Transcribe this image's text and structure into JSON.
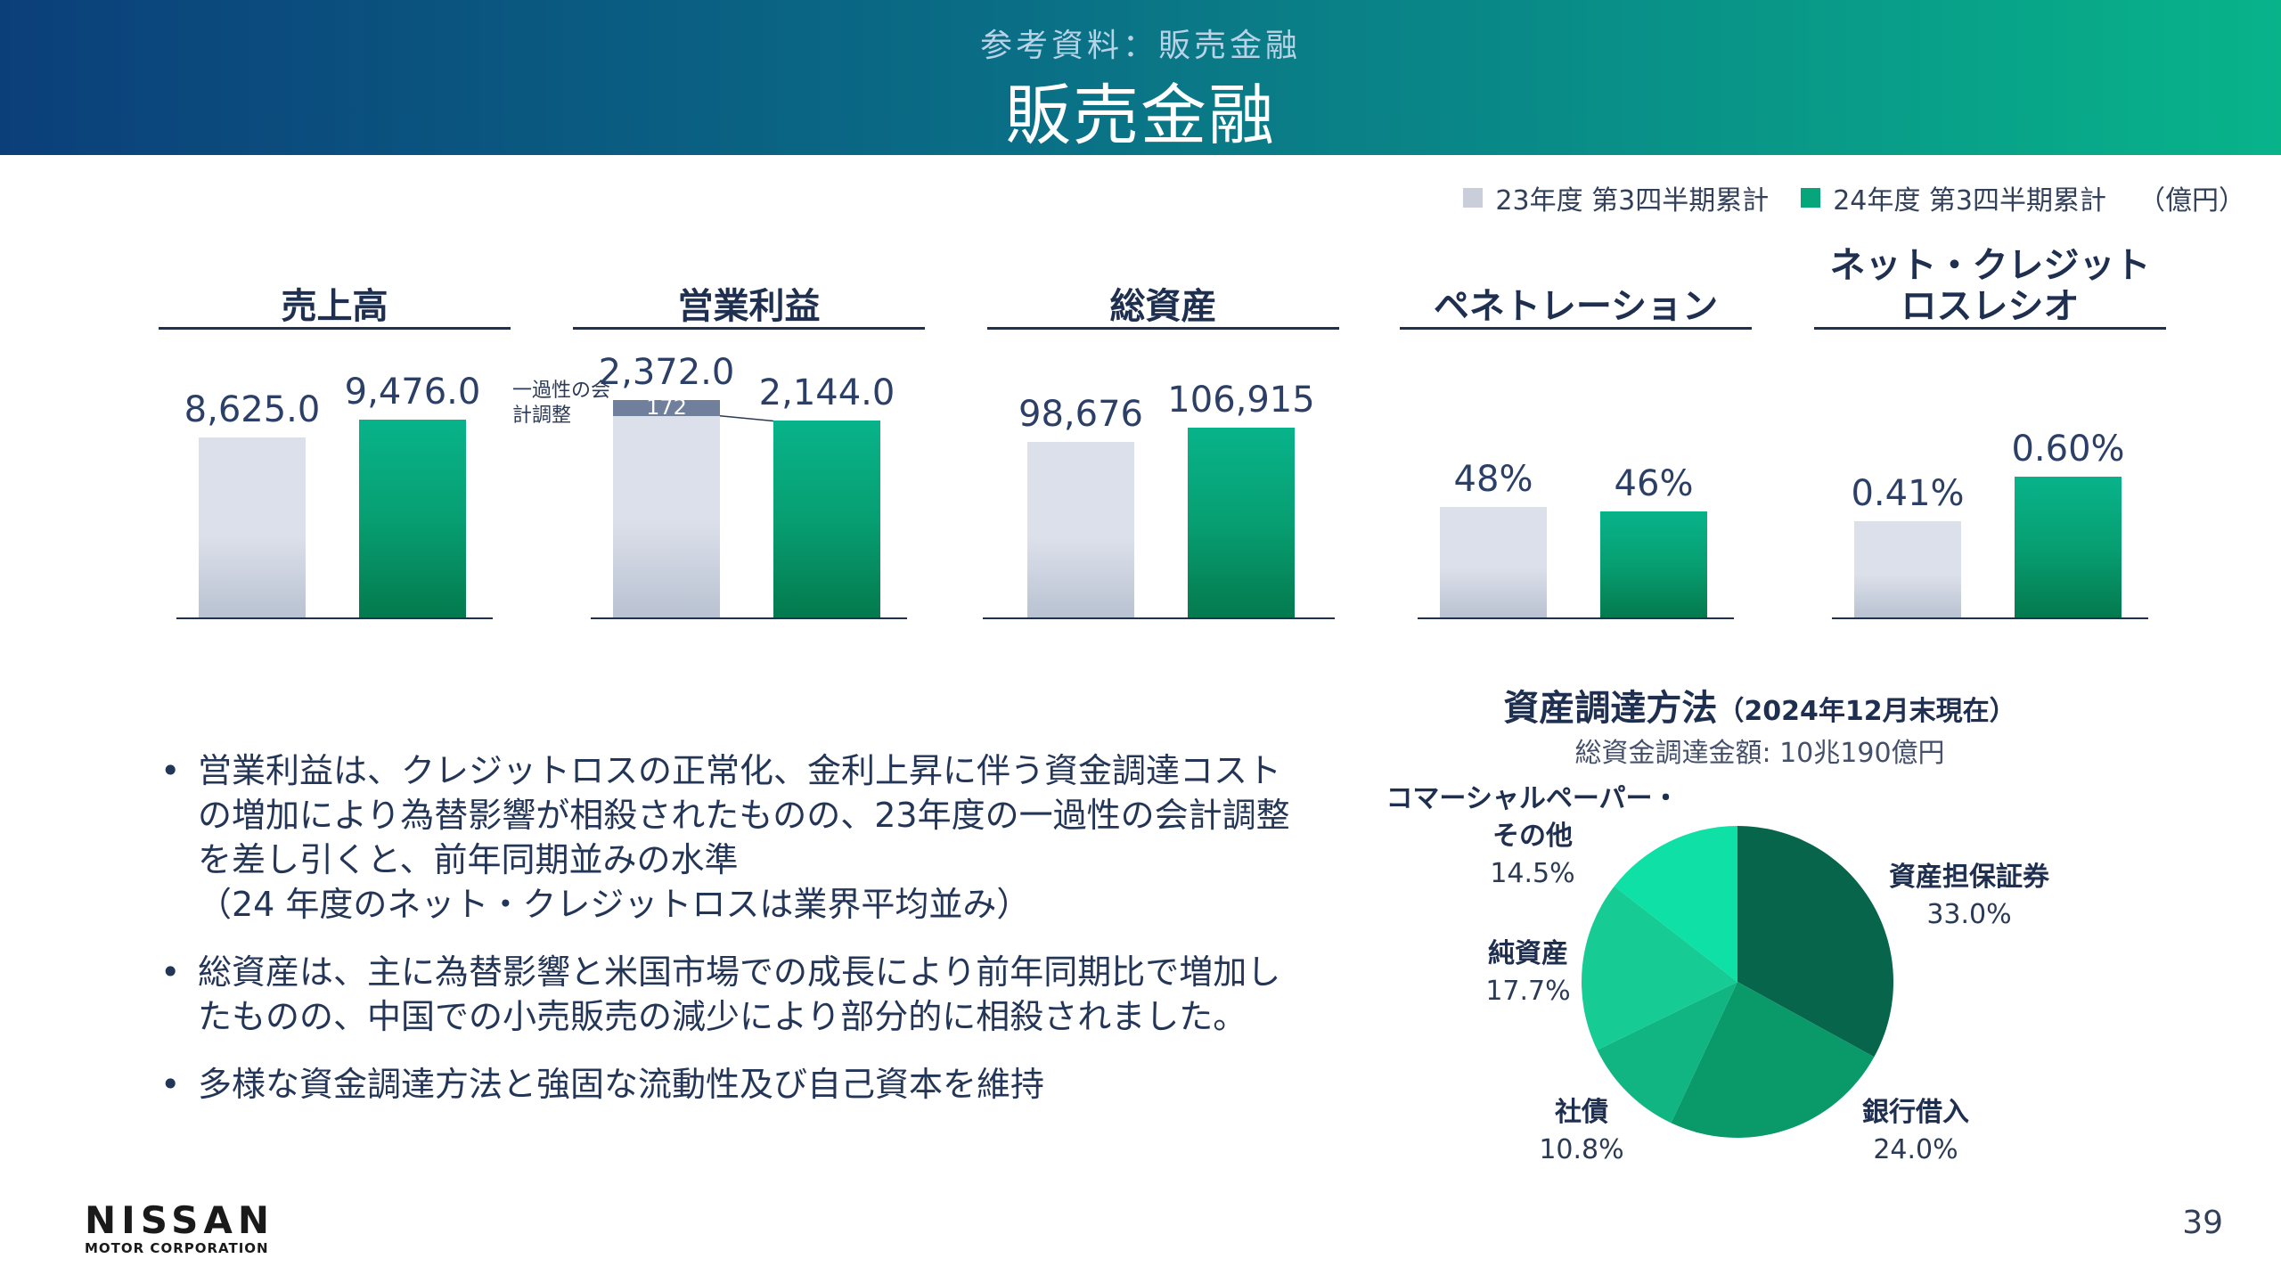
{
  "header": {
    "subtitle": "参考資料：販売金融",
    "title": "販売金融"
  },
  "legend": {
    "prev_label": "23年度 第3四半期累計",
    "curr_label": "24年度 第3四半期累計",
    "unit": "（億円）",
    "prev_color": "#d9dde6",
    "curr_color": "#07a57a"
  },
  "chart_data": [
    {
      "type": "bar",
      "title": "売上高",
      "categories": [
        "23年度 第3四半期累計",
        "24年度 第3四半期累計"
      ],
      "values": [
        8625.0,
        9476.0
      ],
      "labels": [
        "8,625.0",
        "9,476.0"
      ]
    },
    {
      "type": "bar",
      "title": "営業利益",
      "categories": [
        "23年度 第3四半期累計",
        "24年度 第3四半期累計"
      ],
      "values": [
        2372.0,
        2144.0
      ],
      "labels": [
        "2,372.0",
        "2,144.0"
      ],
      "annotation": {
        "label": "一過性の会計調整",
        "value": 172,
        "value_label": "172"
      }
    },
    {
      "type": "bar",
      "title": "総資産",
      "categories": [
        "23年度 第3四半期累計",
        "24年度 第3四半期累計"
      ],
      "values": [
        98676,
        106915
      ],
      "labels": [
        "98,676",
        "106,915"
      ]
    },
    {
      "type": "bar",
      "title": "ペネトレーション",
      "categories": [
        "23年度 第3四半期累計",
        "24年度 第3四半期累計"
      ],
      "values": [
        48,
        46
      ],
      "labels": [
        "48%",
        "46%"
      ]
    },
    {
      "type": "bar",
      "title_lines": [
        "ネット・クレジット",
        "ロスレシオ"
      ],
      "categories": [
        "23年度 第3四半期累計",
        "24年度 第3四半期累計"
      ],
      "values": [
        0.41,
        0.6
      ],
      "labels": [
        "0.41%",
        "0.60%"
      ]
    },
    {
      "type": "pie",
      "title": "資産調達方法",
      "title_note": "（2024年12月末現在）",
      "subtitle": "総資金調達金額: 10兆190億円",
      "slices": [
        {
          "name": "資産担保証券",
          "value": 33.0,
          "label": "33.0%",
          "color": "#06654a"
        },
        {
          "name": "銀行借入",
          "value": 24.0,
          "label": "24.0%",
          "color": "#0a9a6a"
        },
        {
          "name": "社債",
          "value": 10.8,
          "label": "10.8%",
          "color": "#10b582"
        },
        {
          "name": "純資産",
          "value": 17.7,
          "label": "17.7%",
          "color": "#16cc94"
        },
        {
          "name_lines": [
            "コマーシャルペーパー・",
            "その他"
          ],
          "value": 14.5,
          "label": "14.5%",
          "color": "#0ee0a6"
        }
      ]
    }
  ],
  "bullets": [
    "営業利益は、クレジットロスの正常化、金利上昇に伴う資金調達コストの増加により為替影響が相殺されたものの、23年度の一過性の会計調整を差し引くと、前年同期並みの水準\n（24 年度のネット・クレジットロスは業界平均並み）",
    "総資産は、主に為替影響と米国市場での成長により前年同期比で増加したものの、中国での小売販売の減少により部分的に相殺されました。",
    "多様な資金調達方法と強固な流動性及び自己資本を維持"
  ],
  "footer": {
    "logo_main": "NISSAN",
    "logo_sub": "MOTOR CORPORATION",
    "page_number": "39"
  }
}
